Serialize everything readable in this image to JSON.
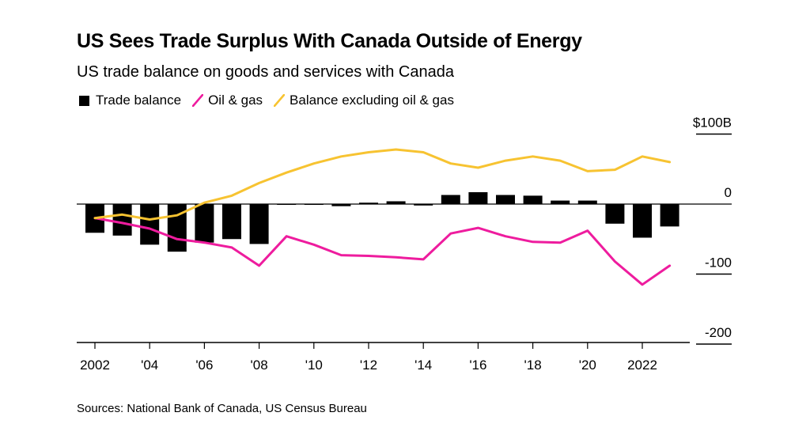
{
  "title": "US Sees Trade Surplus With Canada Outside of Energy",
  "subtitle": "US trade balance on goods and services with Canada",
  "legend": [
    {
      "label": "Trade balance",
      "shape": "box",
      "color": "#000000"
    },
    {
      "label": "Oil & gas",
      "shape": "line",
      "color": "#ee1c9e"
    },
    {
      "label": "Balance excluding oil & gas",
      "shape": "line",
      "color": "#f7c331"
    }
  ],
  "source": "Sources: National Bank of Canada, US Census Bureau",
  "chart_data": {
    "type": "bar",
    "x": [
      2002,
      2003,
      2004,
      2005,
      2006,
      2007,
      2008,
      2009,
      2010,
      2011,
      2012,
      2013,
      2014,
      2015,
      2016,
      2017,
      2018,
      2019,
      2020,
      2021,
      2022,
      2023
    ],
    "ylim": [
      -200,
      100
    ],
    "yticks": [
      100,
      0,
      -100,
      -200
    ],
    "ytick_labels": [
      "$100B",
      "0",
      "-100",
      "-200"
    ],
    "xtick_labels": [
      "2002",
      "'04",
      "'06",
      "'08",
      "'10",
      "'12",
      "'14",
      "'16",
      "'18",
      "'20",
      "2022"
    ],
    "xtick_positions": [
      2002,
      2004,
      2006,
      2008,
      2010,
      2012,
      2014,
      2016,
      2018,
      2020,
      2022
    ],
    "series": [
      {
        "name": "Trade balance",
        "type": "bar",
        "color": "#000000",
        "values": [
          -41,
          -45,
          -58,
          -68,
          -55,
          -50,
          -57,
          -1,
          -1,
          -3,
          2,
          4,
          -2,
          13,
          17,
          13,
          12,
          5,
          5,
          -28,
          -48,
          -32
        ]
      },
      {
        "name": "Oil & gas",
        "type": "line",
        "color": "#ee1c9e",
        "values": [
          -20,
          -27,
          -35,
          -50,
          -55,
          -62,
          -88,
          -46,
          -58,
          -73,
          -74,
          -76,
          -79,
          -42,
          -34,
          -46,
          -54,
          -55,
          -38,
          -82,
          -115,
          -88
        ]
      },
      {
        "name": "Balance excluding oil & gas",
        "type": "line",
        "color": "#f7c331",
        "values": [
          -20,
          -15,
          -22,
          -16,
          2,
          12,
          30,
          45,
          58,
          68,
          74,
          78,
          74,
          58,
          52,
          62,
          68,
          62,
          47,
          49,
          68,
          60
        ]
      }
    ]
  }
}
